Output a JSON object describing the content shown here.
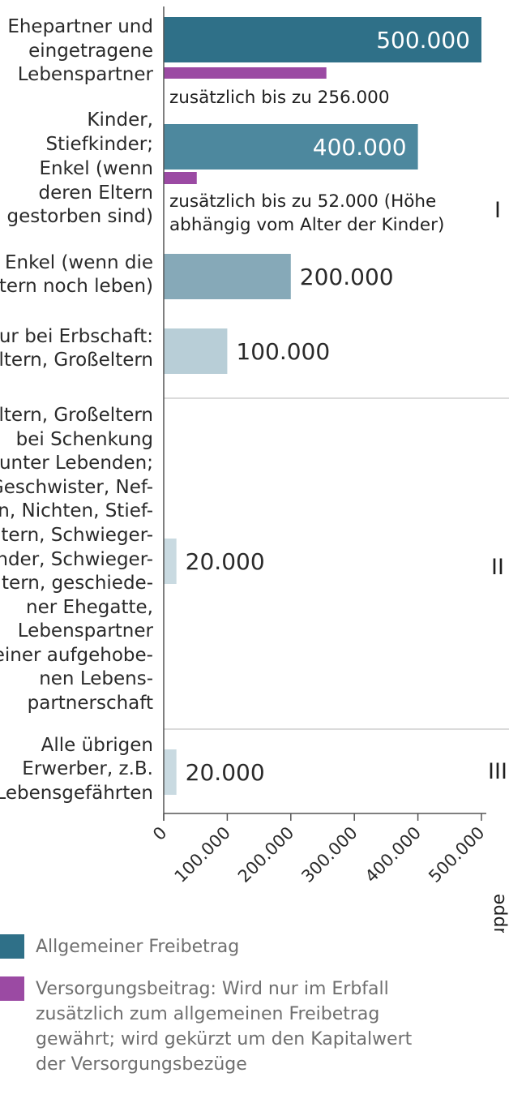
{
  "chart_data": {
    "type": "bar",
    "orientation": "horizontal",
    "categories": [
      {
        "label": [
          "Ehepartner und",
          "eingetragene",
          "Lebenspartner"
        ],
        "group": "I"
      },
      {
        "label": [
          "Kinder,",
          "Stiefkinder;",
          "Enkel (wenn",
          "deren Eltern",
          "gestorben sind)"
        ],
        "group": "I"
      },
      {
        "label": [
          "Enkel (wenn die",
          "Eltern noch leben)"
        ],
        "group": "I"
      },
      {
        "label": [
          "Nur bei Erbschaft:",
          "Eltern, Großeltern"
        ],
        "group": "I"
      },
      {
        "label": [
          "Eltern, Großeltern",
          "bei Schenkung",
          "unter Lebenden;",
          "Geschwister, Nef-",
          "fen, Nichten, Stief-",
          "eltern, Schwieger-",
          "kinder, Schwieger-",
          "eltern, geschiede-",
          "ner Ehegatte,",
          "Lebenspartner",
          "einer aufgehobe-",
          "nen Lebens-",
          "partnerschaft"
        ],
        "group": "II"
      },
      {
        "label": [
          "Alle übrigen",
          "Erwerber, z.B.",
          "Lebensgefährten"
        ],
        "group": "III"
      }
    ],
    "series": [
      {
        "name": "Allgemeiner Freibetrag",
        "values": [
          500000,
          400000,
          200000,
          100000,
          20000,
          20000
        ],
        "value_labels": [
          "500.000",
          "400.000",
          "200.000",
          "100.000",
          "20.000",
          "20.000"
        ],
        "colors": [
          "#2f7088",
          "#4d889e",
          "#86a9b8",
          "#b8ced7",
          "#c9dae1",
          "#c9dae1"
        ]
      },
      {
        "name": "Versorgungsbeitrag",
        "values": [
          256000,
          52000,
          null,
          null,
          null,
          null
        ],
        "value_labels": [
          [
            "zusätzlich bis zu 256.000"
          ],
          [
            "zusätzlich bis zu 52.000 (Höhe",
            "abhängig vom Alter der Kinder)"
          ],
          null,
          null,
          null,
          null
        ],
        "color": "#9b4aa3"
      }
    ],
    "groups": [
      "I",
      "II",
      "III"
    ],
    "xlim": [
      0,
      500000
    ],
    "xticks": [
      "0",
      "100.000",
      "200.000",
      "300.000",
      "400.000",
      "500.000"
    ],
    "group_axis_label": "Erbschaftsteuergruppe",
    "legend": [
      {
        "color": "#2f7088",
        "text": "Allgemeiner Freibetrag"
      },
      {
        "color": "#9b4aa3",
        "text": "Versorgungsbeitrag: Wird nur im Erbfall zusätzlich zum allgemeinen Freibetrag gewährt; wird gekürzt um den Kapitalwert der Versorgungsbezüge"
      }
    ]
  }
}
